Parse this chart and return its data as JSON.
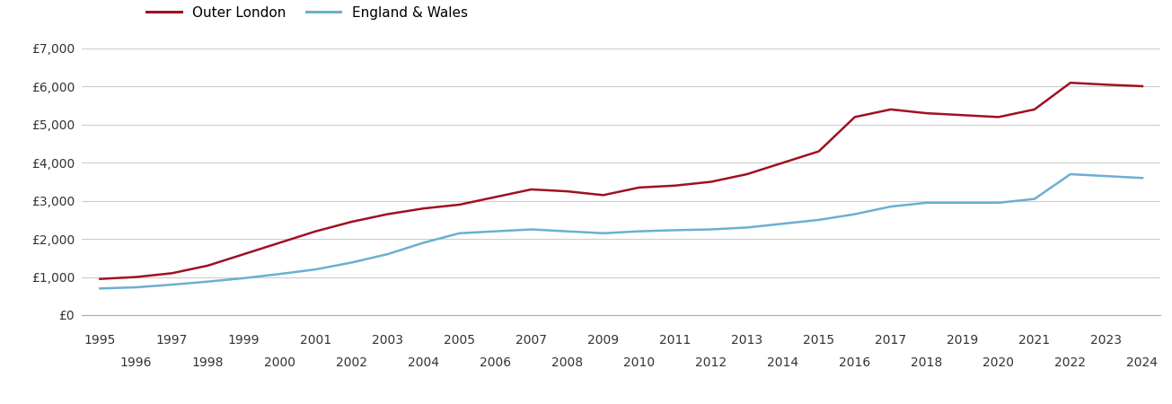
{
  "outer_london_years": [
    1995,
    1996,
    1997,
    1998,
    1999,
    2000,
    2001,
    2002,
    2003,
    2004,
    2005,
    2006,
    2007,
    2008,
    2009,
    2010,
    2011,
    2012,
    2013,
    2014,
    2015,
    2016,
    2017,
    2018,
    2019,
    2020,
    2021,
    2022,
    2023,
    2024
  ],
  "outer_london_values": [
    950,
    1000,
    1100,
    1300,
    1600,
    1900,
    2200,
    2450,
    2650,
    2800,
    2900,
    3100,
    3300,
    3250,
    3150,
    3350,
    3400,
    3500,
    3700,
    4000,
    4300,
    5200,
    5400,
    5300,
    5250,
    5200,
    5400,
    6100,
    6050,
    6010
  ],
  "england_wales_years": [
    1995,
    1996,
    1997,
    1998,
    1999,
    2000,
    2001,
    2002,
    2003,
    2004,
    2005,
    2006,
    2007,
    2008,
    2009,
    2010,
    2011,
    2012,
    2013,
    2014,
    2015,
    2016,
    2017,
    2018,
    2019,
    2020,
    2021,
    2022,
    2023,
    2024
  ],
  "england_wales_values": [
    700,
    730,
    800,
    880,
    970,
    1080,
    1200,
    1380,
    1600,
    1900,
    2150,
    2200,
    2250,
    2200,
    2150,
    2200,
    2230,
    2250,
    2300,
    2400,
    2500,
    2650,
    2850,
    2950,
    2950,
    2950,
    3050,
    3700,
    3650,
    3600
  ],
  "outer_london_color": "#a01020",
  "england_wales_color": "#6ab0d0",
  "outer_london_label": "Outer London",
  "england_wales_label": "England & Wales",
  "ylim": [
    0,
    7000
  ],
  "yticks": [
    0,
    1000,
    2000,
    3000,
    4000,
    5000,
    6000,
    7000
  ],
  "ytick_labels": [
    "£0",
    "£1,000",
    "£2,000",
    "£3,000",
    "£4,000",
    "£5,000",
    "£6,000",
    "£7,000"
  ],
  "xlim_min": 1994.5,
  "xlim_max": 2024.5,
  "background_color": "#ffffff",
  "grid_color": "#cccccc",
  "line_width": 1.8,
  "legend_fontsize": 11,
  "tick_fontsize": 10
}
